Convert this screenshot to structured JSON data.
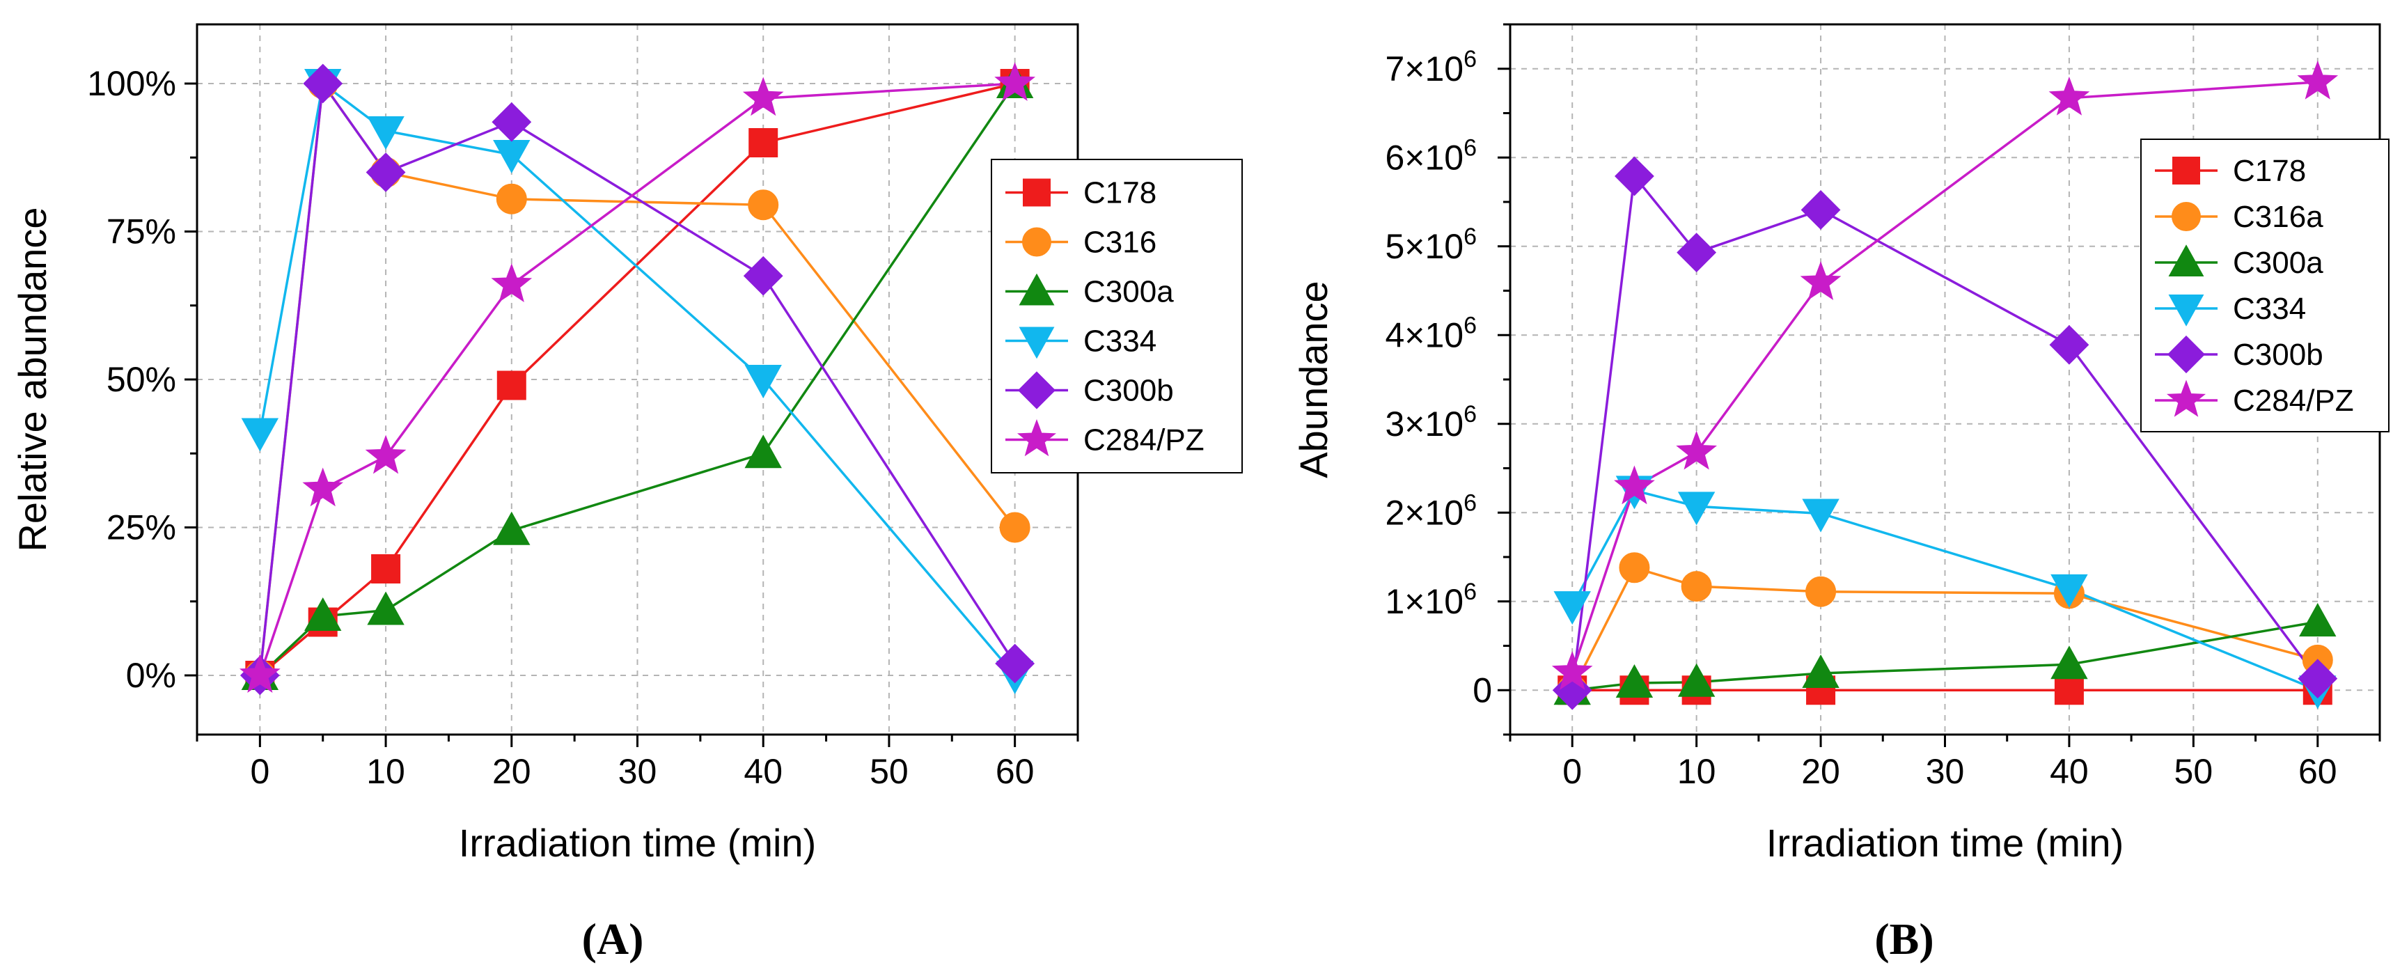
{
  "chart_data": [
    {
      "type": "line",
      "panel_label": "(A)",
      "xlabel": "Irradiation time (min)",
      "ylabel": "Relative abundance",
      "xlim": [
        -5,
        65
      ],
      "ylim": [
        -0.1,
        1.1
      ],
      "xticks": [
        0,
        10,
        20,
        30,
        40,
        50,
        60
      ],
      "xtick_labels": [
        "0",
        "10",
        "20",
        "30",
        "40",
        "50",
        "60"
      ],
      "yticks": [
        0,
        0.25,
        0.5,
        0.75,
        1.0
      ],
      "ytick_labels": [
        "0%",
        "25%",
        "50%",
        "75%",
        "100%"
      ],
      "grid": true,
      "legend_position": "right",
      "x": [
        0,
        5,
        10,
        20,
        40,
        60
      ],
      "series": [
        {
          "name": "C178",
          "color": "#ee1c1c",
          "marker": "square",
          "values": [
            0,
            0.09,
            0.18,
            0.49,
            0.9,
            1.0
          ]
        },
        {
          "name": "C316",
          "color": "#ff8c1a",
          "marker": "circle",
          "values": [
            0,
            1.0,
            0.85,
            0.805,
            0.795,
            0.25
          ]
        },
        {
          "name": "C300a",
          "color": "#118811",
          "marker": "triangle-up",
          "values": [
            0,
            0.1,
            0.11,
            0.245,
            0.375,
            1.0
          ]
        },
        {
          "name": "C334",
          "color": "#11b7ee",
          "marker": "triangle-down",
          "values": [
            0.41,
            1.0,
            0.92,
            0.88,
            0.5,
            0
          ]
        },
        {
          "name": "C300b",
          "color": "#8b1cdc",
          "marker": "diamond",
          "values": [
            0,
            1.0,
            0.85,
            0.935,
            0.675,
            0.02
          ]
        },
        {
          "name": "C284/PZ",
          "color": "#c81cc8",
          "marker": "star",
          "values": [
            0,
            0.315,
            0.37,
            0.66,
            0.975,
            1.0
          ]
        }
      ]
    },
    {
      "type": "line",
      "panel_label": "(B)",
      "xlabel": "Irradiation time (min)",
      "ylabel": "Abundance",
      "xlim": [
        -5,
        65
      ],
      "ylim": [
        -500000,
        7500000
      ],
      "xticks": [
        0,
        10,
        20,
        30,
        40,
        50,
        60
      ],
      "xtick_labels": [
        "0",
        "10",
        "20",
        "30",
        "40",
        "50",
        "60"
      ],
      "yticks": [
        0,
        1000000,
        2000000,
        3000000,
        4000000,
        5000000,
        6000000,
        7000000
      ],
      "ytick_labels": [
        "0",
        "1×10",
        "2×10",
        "3×10",
        "4×10",
        "5×10",
        "6×10",
        "7×10"
      ],
      "ytick_exponent": "6",
      "grid": true,
      "legend_position": "top-right",
      "x": [
        0,
        5,
        10,
        20,
        40,
        60
      ],
      "series": [
        {
          "name": "C178",
          "color": "#ee1c1c",
          "marker": "square",
          "values": [
            0,
            0,
            0,
            0,
            0,
            0
          ]
        },
        {
          "name": "C316a",
          "color": "#ff8c1a",
          "marker": "circle",
          "values": [
            0,
            1380000,
            1170000,
            1110000,
            1090000,
            340000
          ]
        },
        {
          "name": "C300a",
          "color": "#118811",
          "marker": "triangle-up",
          "values": [
            0,
            80000,
            90000,
            190000,
            290000,
            770000
          ]
        },
        {
          "name": "C334",
          "color": "#11b7ee",
          "marker": "triangle-down",
          "values": [
            950000,
            2250000,
            2070000,
            1990000,
            1140000,
            0
          ]
        },
        {
          "name": "C300b",
          "color": "#8b1cdc",
          "marker": "diamond",
          "values": [
            0,
            5790000,
            4930000,
            5410000,
            3890000,
            130000
          ]
        },
        {
          "name": "C284/PZ",
          "color": "#c81cc8",
          "marker": "star",
          "values": [
            200000,
            2290000,
            2680000,
            4590000,
            6670000,
            6850000
          ]
        }
      ]
    }
  ]
}
